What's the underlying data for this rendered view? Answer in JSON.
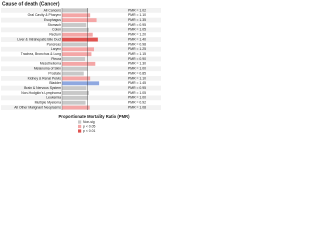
{
  "chart_data": {
    "type": "hbar",
    "title": "Cause of death (Cancer)",
    "x_label": "Proportionate Mortality Ratio (PMR)",
    "categories": [
      "All Cancers",
      "Oral Cavity & Pharynx",
      "Esophagus",
      "Stomach",
      "Colon",
      "Rectum",
      "Liver & Intrahepatic Bile Duct",
      "Pancreas",
      "Larynx",
      "Trachea, Bronchus & Lung",
      "Pleura",
      "Mesothelioma",
      "Melanoma of Skin",
      "Prostate",
      "Kidney & Renal Pelvis",
      "Bladder",
      "Brain & Nervous System",
      "Non-Hodgkin's Lymphoma",
      "Leukemia",
      "Multiple Myeloma",
      "All Other Malignant Neoplasms"
    ],
    "values": [
      1.02,
      1.1,
      1.35,
      0.95,
      1.05,
      1.2,
      1.4,
      0.98,
      1.25,
      1.15,
      0.9,
      1.3,
      1.0,
      0.85,
      1.1,
      1.45,
      0.95,
      1.05,
      1.0,
      0.92,
      1.08
    ],
    "value_labels": [
      "PMR = 1.02",
      "PMR = 1.10",
      "PMR = 1.35",
      "PMR = 0.95",
      "PMR = 1.05",
      "PMR = 1.20",
      "PMR = 1.40",
      "PMR = 0.98",
      "PMR = 1.25",
      "PMR = 1.15",
      "PMR = 0.90",
      "PMR = 1.30",
      "PMR = 1.00",
      "PMR = 0.85",
      "PMR = 1.10",
      "PMR = 1.45",
      "PMR = 0.95",
      "PMR = 1.05",
      "PMR = 1.00",
      "PMR = 0.92",
      "PMR = 1.08"
    ],
    "bar_colors": [
      "#c8c8c8",
      "#f4a6a6",
      "#f4a6a6",
      "#c8c8c8",
      "#c8c8c8",
      "#f4a6a6",
      "#e0524f",
      "#c8c8c8",
      "#f4a6a6",
      "#f4a6a6",
      "#c8c8c8",
      "#f4a6a6",
      "#c8c8c8",
      "#c8c8c8",
      "#f4a6a6",
      "#8fa8e0",
      "#c8c8c8",
      "#c8c8c8",
      "#c8c8c8",
      "#c8c8c8",
      "#f4a6a6"
    ],
    "xlim": [
      0,
      2.5
    ],
    "reference_line": 1,
    "legend": [
      {
        "label": "Non-sig",
        "color": "#c8c8c8"
      },
      {
        "label": "p < 0.05",
        "color": "#f4a6a6"
      },
      {
        "label": "p < 0.01",
        "color": "#e0524f"
      }
    ]
  }
}
